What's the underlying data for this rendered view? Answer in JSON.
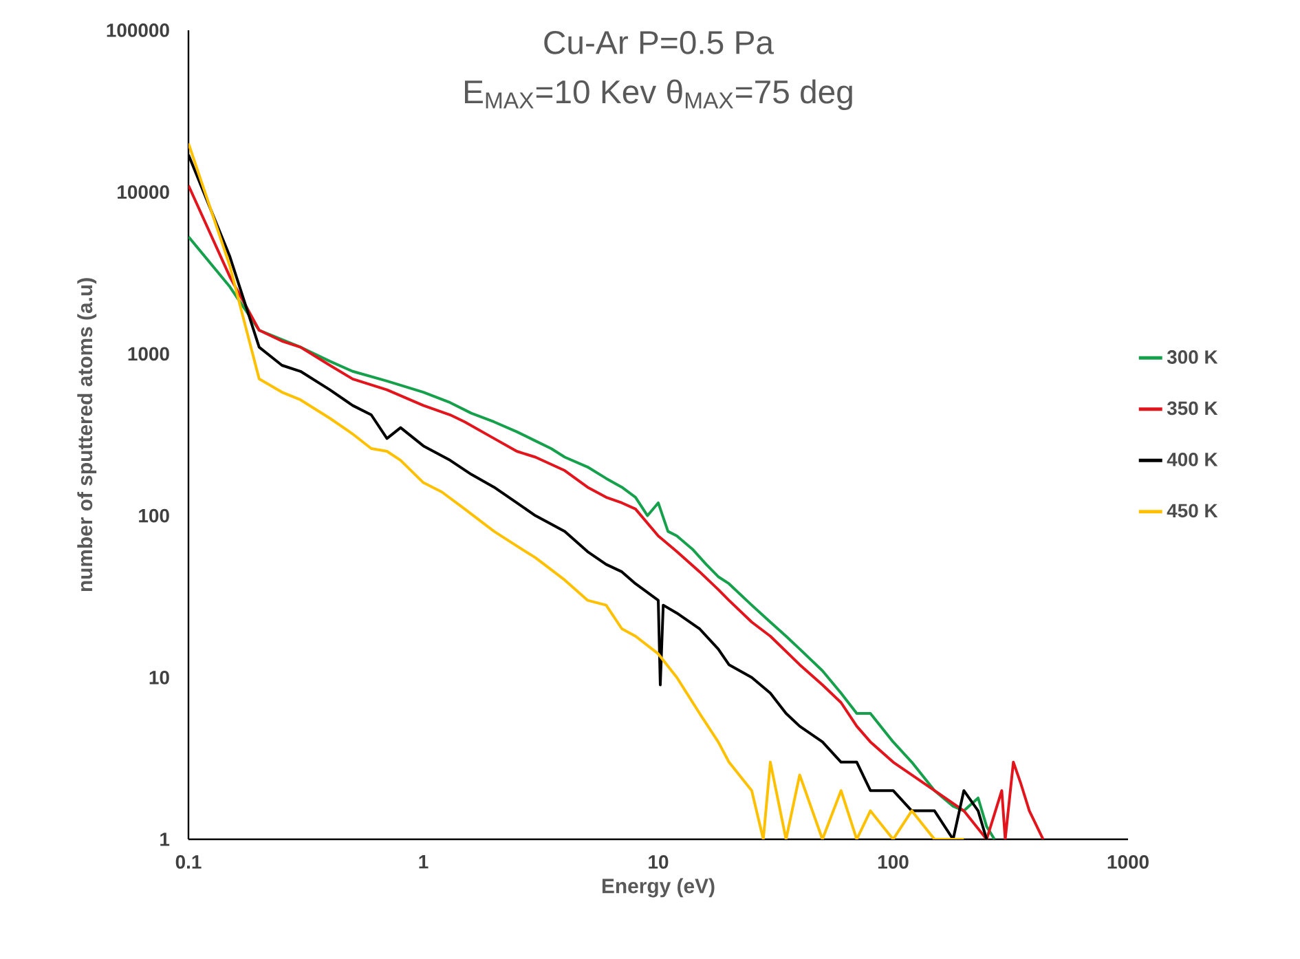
{
  "chart_data": {
    "type": "line",
    "title": "Cu-Ar      P=0.5 Pa",
    "subtitle": "E$_{MAX}$=10 Kev    θ$_{MAX}$=75 deg",
    "xlabel": "Energy (eV)",
    "ylabel": "number of sputtered atoms (a.u)",
    "log": "xy",
    "xlim": [
      0.1,
      1000
    ],
    "ylim": [
      1,
      100000
    ],
    "xticks": [
      0.1,
      1,
      10,
      100,
      1000
    ],
    "yticks": [
      1,
      10,
      100,
      1000,
      10000,
      100000
    ],
    "grid": false,
    "legend": "right",
    "marker": "none",
    "line_style": "solid",
    "series": [
      {
        "name": "300 K",
        "color": "#17a04c",
        "x": [
          0.1,
          0.15,
          0.2,
          0.25,
          0.3,
          0.4,
          0.5,
          0.7,
          1,
          1.3,
          1.6,
          2,
          2.5,
          3,
          3.5,
          4,
          5,
          6,
          7,
          8,
          9,
          10,
          11,
          12,
          14,
          16,
          18,
          20,
          25,
          30,
          35,
          40,
          50,
          60,
          70,
          80,
          100,
          120,
          150,
          180,
          200,
          230,
          250,
          270
        ],
        "values": [
          5300,
          2600,
          1400,
          null,
          1100,
          900,
          780,
          680,
          580,
          500,
          430,
          380,
          330,
          290,
          260,
          230,
          200,
          170,
          150,
          130,
          100,
          120,
          80,
          75,
          62,
          50,
          42,
          38,
          28,
          22,
          18,
          15,
          11,
          8,
          6,
          6,
          4,
          3,
          2,
          1.6,
          1.5,
          1.8,
          1.2,
          1
        ]
      },
      {
        "name": "350 K",
        "color": "#e2141c",
        "x": [
          0.1,
          0.15,
          0.2,
          0.25,
          0.3,
          0.4,
          0.5,
          0.7,
          1,
          1.3,
          1.5,
          2,
          2.5,
          3,
          4,
          5,
          6,
          7,
          8,
          10,
          12,
          15,
          18,
          20,
          25,
          30,
          40,
          50,
          60,
          70,
          80,
          100,
          120,
          150,
          200,
          250,
          290,
          300,
          325,
          350,
          380,
          435
        ],
        "values": [
          11000,
          3000,
          1400,
          1200,
          1100,
          850,
          700,
          600,
          480,
          420,
          380,
          300,
          250,
          230,
          190,
          150,
          130,
          120,
          110,
          75,
          60,
          45,
          35,
          30,
          22,
          18,
          12,
          9,
          7,
          5,
          4,
          3,
          2.5,
          2,
          1.5,
          1,
          2,
          1,
          3,
          2.2,
          1.5,
          1
        ]
      },
      {
        "name": "400 K",
        "color": "#000000",
        "x": [
          0.1,
          0.15,
          0.2,
          0.25,
          0.3,
          0.4,
          0.5,
          0.6,
          0.7,
          0.8,
          1,
          1.3,
          1.6,
          2,
          2.5,
          3,
          4,
          5,
          6,
          7,
          8,
          10,
          10.2,
          10.5,
          12,
          15,
          18,
          20,
          25,
          30,
          35,
          40,
          50,
          60,
          70,
          80,
          100,
          120,
          150,
          180,
          200,
          230,
          250
        ],
        "values": [
          17000,
          4000,
          1100,
          850,
          780,
          600,
          480,
          420,
          300,
          350,
          270,
          220,
          180,
          150,
          120,
          100,
          80,
          60,
          50,
          45,
          38,
          30,
          9,
          28,
          25,
          20,
          15,
          12,
          10,
          8,
          6,
          5,
          4,
          3,
          3,
          2,
          2,
          1.5,
          1.5,
          1,
          2,
          1.5,
          1
        ]
      },
      {
        "name": "450 K",
        "color": "#ffc000",
        "x": [
          0.1,
          0.15,
          0.2,
          0.25,
          0.3,
          0.4,
          0.5,
          0.6,
          0.7,
          0.8,
          1,
          1.2,
          1.5,
          2,
          2.5,
          3,
          4,
          5,
          6,
          7,
          8,
          10,
          12,
          15,
          18,
          20,
          25,
          28,
          30,
          35,
          40,
          50,
          60,
          70,
          80,
          100,
          120,
          150,
          200
        ],
        "values": [
          20000,
          3500,
          700,
          580,
          520,
          400,
          320,
          260,
          250,
          220,
          160,
          140,
          110,
          80,
          65,
          55,
          40,
          30,
          28,
          20,
          18,
          14,
          10,
          6,
          4,
          3,
          2,
          1,
          3,
          1,
          2.5,
          1,
          2,
          1,
          1.5,
          1,
          1.5,
          1,
          1
        ]
      }
    ]
  }
}
